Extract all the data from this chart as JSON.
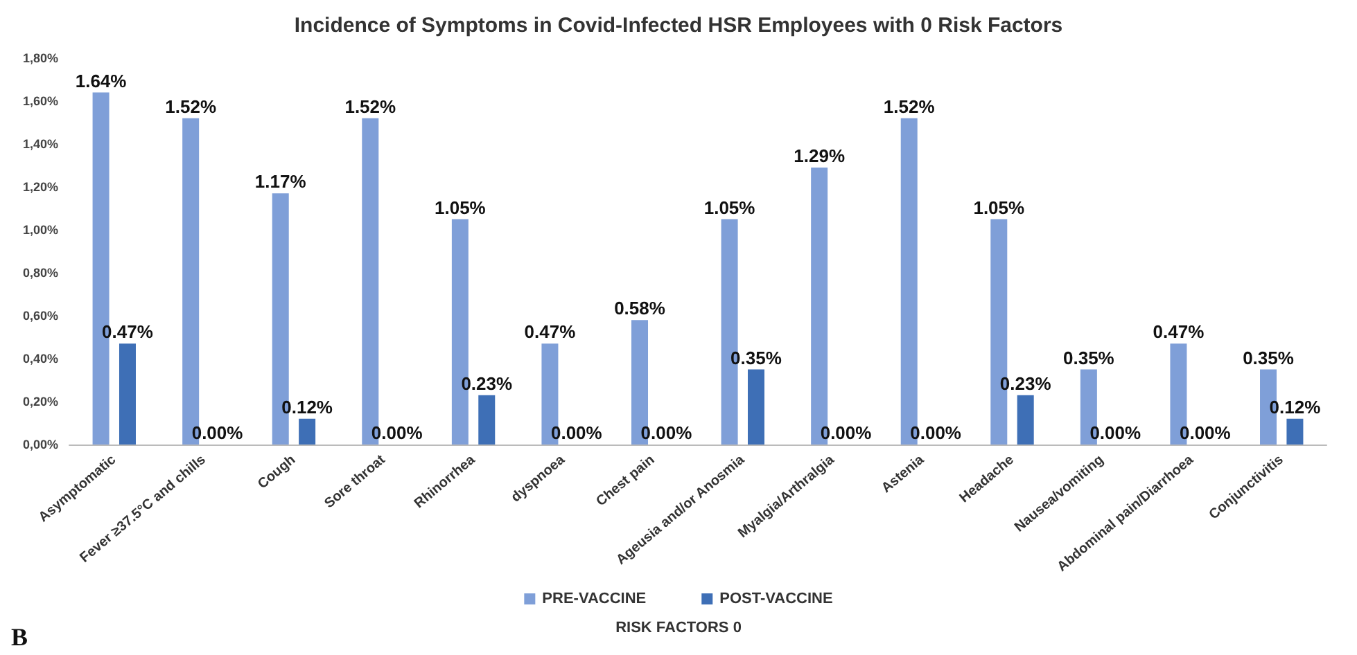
{
  "chart_data": {
    "type": "bar",
    "title": "Incidence of Symptoms in Covid-Infected HSR Employees with 0 Risk Factors",
    "xlabel": "RISK FACTORS 0",
    "categories": [
      "Asymptomatic",
      "Fever ≥37.5°C and chills",
      "Cough",
      "Sore throat",
      "Rhinorrhea",
      "dyspnoea",
      "Chest pain",
      "Ageusia and/or Anosmia",
      "Myalgia/Arthralgia",
      "Astenia",
      "Headache",
      "Nausea/vomiting",
      "Abdominal pain/Diarrhoea",
      "Conjunctivitis"
    ],
    "series": [
      {
        "name": "PRE-VACCINE",
        "color": "#7f9fd8",
        "values": [
          1.64,
          1.52,
          1.17,
          1.52,
          1.05,
          0.47,
          0.58,
          1.05,
          1.29,
          1.52,
          1.05,
          0.35,
          0.47,
          0.35
        ],
        "value_labels": [
          "1.64%",
          "1.52%",
          "1.17%",
          "1.52%",
          "1.05%",
          "0.47%",
          "0.58%",
          "1.05%",
          "1.29%",
          "1.52%",
          "1.05%",
          "0.35%",
          "0.47%",
          "0.35%"
        ]
      },
      {
        "name": "POST-VACCINE",
        "color": "#3e6fb6",
        "values": [
          0.47,
          0,
          0.12,
          0,
          0.23,
          0,
          0,
          0.35,
          0,
          0,
          0.23,
          0,
          0,
          0.12
        ],
        "value_labels": [
          "0.47%",
          "0.00%",
          "0.12%",
          "0.00%",
          "0.23%",
          "0.00%",
          "0.00%",
          "0.35%",
          "0.00%",
          "0.00%",
          "0.23%",
          "0.00%",
          "0.00%",
          "0.12%"
        ]
      }
    ],
    "ylim": [
      0,
      1.8
    ],
    "yticks": [
      {
        "value": 0,
        "label": "0,00%"
      },
      {
        "value": 0.2,
        "label": "0,20%"
      },
      {
        "value": 0.4,
        "label": "0,40%"
      },
      {
        "value": 0.6,
        "label": "0,60%"
      },
      {
        "value": 0.8,
        "label": "0,80%"
      },
      {
        "value": 1.0,
        "label": "1,00%"
      },
      {
        "value": 1.2,
        "label": "1,20%"
      },
      {
        "value": 1.4,
        "label": "1,40%"
      },
      {
        "value": 1.6,
        "label": "1,60%"
      },
      {
        "value": 1.8,
        "label": "1,80%"
      }
    ],
    "grid": false,
    "legend": "bottom",
    "annotations": [
      "B"
    ]
  }
}
